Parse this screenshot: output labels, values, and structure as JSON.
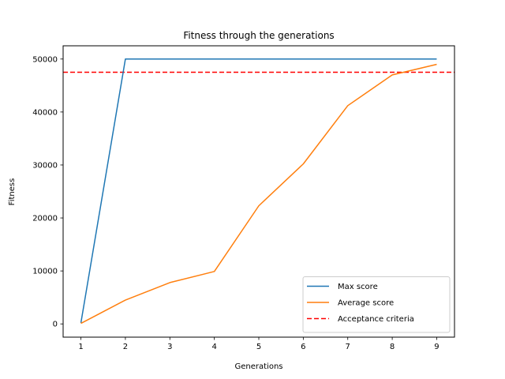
{
  "chart_data": {
    "type": "line",
    "title": "Fitness through the generations",
    "xlabel": "Generations",
    "ylabel": "Fitness",
    "xlim": [
      0.6,
      9.4
    ],
    "ylim": [
      -2500,
      52500
    ],
    "xticks": [
      1,
      2,
      3,
      4,
      5,
      6,
      7,
      8,
      9
    ],
    "yticks": [
      0,
      10000,
      20000,
      30000,
      40000,
      50000
    ],
    "x": [
      1,
      2,
      3,
      4,
      5,
      6,
      7,
      8,
      9
    ],
    "series": [
      {
        "name": "Max score",
        "color": "#1f77b4",
        "style": "solid",
        "values": [
          200,
          50000,
          50000,
          50000,
          50000,
          50000,
          50000,
          50000,
          50000
        ]
      },
      {
        "name": "Average score",
        "color": "#ff7f0e",
        "style": "solid",
        "values": [
          100,
          4500,
          7800,
          9900,
          22300,
          30200,
          41200,
          47000,
          49000
        ]
      }
    ],
    "reference_lines": [
      {
        "name": "Acceptance criteria",
        "orientation": "horizontal",
        "value": 47500,
        "color": "#ff0000",
        "style": "dashed"
      }
    ],
    "grid": false,
    "legend_position": "lower-right"
  }
}
